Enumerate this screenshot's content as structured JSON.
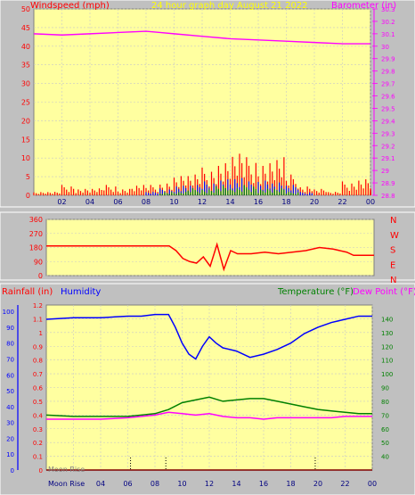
{
  "chart_data": [
    {
      "type": "line",
      "title": "24 hour graph day   August 21 2022",
      "ylabel_left": "Windspeed (mph)",
      "ylabel_right": "Barometer (in)",
      "x_ticks": [
        "02",
        "04",
        "06",
        "08",
        "10",
        "12",
        "14",
        "16",
        "18",
        "20",
        "22",
        "00"
      ],
      "ylim_left": [
        0,
        50
      ],
      "y_ticks_left": [
        0,
        5,
        10,
        15,
        20,
        25,
        30,
        35,
        40,
        45,
        50
      ],
      "ylim_right": [
        28.8,
        30.3
      ],
      "y_ticks_right": [
        "28.8",
        "28.9",
        "29",
        "29.1",
        "29.2",
        "29.3",
        "29.4",
        "29.5",
        "29.6",
        "29.7",
        "29.8",
        "29.9",
        "30",
        "30.1",
        "30.2",
        "30.3"
      ],
      "series": [
        {
          "name": "Barometer",
          "color": "#ff00ff",
          "axis": "right",
          "x": [
            0,
            2,
            4,
            6,
            8,
            9,
            10,
            12,
            14,
            16,
            18,
            20,
            22,
            24
          ],
          "values": [
            30.1,
            30.09,
            30.1,
            30.11,
            30.12,
            30.11,
            30.1,
            30.08,
            30.06,
            30.05,
            30.04,
            30.03,
            30.02,
            30.02
          ]
        },
        {
          "name": "Wind gust",
          "color": "#ff0000",
          "axis": "left",
          "x": [
            0,
            1,
            2,
            3,
            4,
            5,
            6,
            7,
            8,
            9,
            10,
            11,
            12,
            13,
            14,
            15,
            16,
            17,
            18,
            19,
            20,
            21,
            22,
            23,
            24
          ],
          "values": [
            1,
            1,
            3,
            2,
            2,
            3,
            2,
            3,
            3,
            4,
            6,
            6,
            8,
            10,
            12,
            11,
            10,
            11,
            6,
            3,
            2,
            1,
            4,
            5,
            2
          ]
        },
        {
          "name": "Wind average",
          "color": "#0000ff",
          "axis": "left",
          "x": [
            0,
            2,
            4,
            6,
            8,
            9,
            10,
            11,
            12,
            13,
            14,
            15,
            16,
            17,
            18,
            19,
            20,
            22,
            24
          ],
          "values": [
            0,
            0,
            0,
            0,
            1,
            2,
            3,
            3,
            4,
            5,
            5,
            4,
            5,
            4,
            3,
            1,
            0,
            0,
            0
          ]
        },
        {
          "name": "Wind direction trace",
          "color": "#008000",
          "axis": "left",
          "x": [
            0,
            8,
            9,
            10,
            11,
            12,
            13,
            14,
            15,
            16,
            17,
            18,
            19,
            20,
            24
          ],
          "values": [
            0,
            0,
            1,
            1,
            2,
            2,
            3,
            2,
            3,
            2,
            2,
            1,
            0,
            0,
            0
          ]
        }
      ]
    },
    {
      "type": "line",
      "ylabel_right": "N W S E N",
      "compass": [
        "N",
        "W",
        "S",
        "E",
        "N"
      ],
      "ylim": [
        0,
        360
      ],
      "y_ticks": [
        0,
        90,
        180,
        270,
        360
      ],
      "series": [
        {
          "name": "Wind direction",
          "color": "#ff0000",
          "x": [
            0,
            2,
            4,
            6,
            7,
            8,
            9,
            9.5,
            10,
            10.5,
            11,
            11.5,
            12,
            12.5,
            13,
            13.5,
            14,
            15,
            16,
            17,
            18,
            19,
            20,
            21,
            22,
            22.5,
            24
          ],
          "values": [
            190,
            190,
            190,
            190,
            190,
            190,
            190,
            160,
            110,
            90,
            80,
            120,
            60,
            200,
            40,
            160,
            140,
            140,
            150,
            140,
            150,
            160,
            180,
            170,
            150,
            130,
            130
          ]
        }
      ]
    },
    {
      "type": "line",
      "ylabel_left_1": "Rainfall (in)",
      "ylabel_left_2": "Humidity",
      "ylabel_right_1": "Temperature (°F)",
      "ylabel_right_2": "Dew Point (°F)",
      "x_ticks": [
        "Moon Rise",
        "04",
        "06",
        "08",
        "10",
        "12",
        "14",
        "16",
        "18",
        "20",
        "22",
        "00"
      ],
      "x_tick_first_override": "Moon Rise",
      "moon_set_label": "Moon Rise",
      "rain_ticks": [
        "0",
        "0.1",
        "0.2",
        "0.3",
        "0.4",
        "0.5",
        "0.6",
        "0.7",
        "0.8",
        "0.9",
        "1",
        "1.1",
        "1.2"
      ],
      "humidity_ticks": [
        0,
        10,
        20,
        30,
        40,
        50,
        60,
        70,
        80,
        90,
        100
      ],
      "temp_ticks": [
        40,
        50,
        60,
        70,
        80,
        90,
        100,
        110,
        120,
        130,
        140
      ],
      "ylim_temp": [
        30,
        150
      ],
      "ylim_humidity": [
        0,
        104
      ],
      "series": [
        {
          "name": "Humidity",
          "color": "#0000ff",
          "axis": "humidity",
          "x": [
            0,
            2,
            4,
            6,
            7,
            8,
            9,
            9.5,
            10,
            10.5,
            11,
            11.5,
            12,
            12.5,
            13,
            14,
            15,
            16,
            17,
            18,
            19,
            20,
            21,
            22,
            23,
            24
          ],
          "values": [
            95,
            96,
            96,
            97,
            97,
            98,
            98,
            90,
            80,
            73,
            70,
            78,
            84,
            80,
            77,
            75,
            71,
            73,
            76,
            80,
            86,
            90,
            93,
            95,
            97,
            97
          ]
        },
        {
          "name": "Temperature",
          "color": "#008000",
          "axis": "temp",
          "x": [
            0,
            2,
            4,
            6,
            7,
            8,
            9,
            10,
            11,
            12,
            13,
            14,
            15,
            16,
            17,
            18,
            19,
            20,
            21,
            22,
            23,
            24
          ],
          "values": [
            70,
            69,
            69,
            69,
            70,
            71,
            74,
            79,
            81,
            83,
            80,
            81,
            82,
            82,
            80,
            78,
            76,
            74,
            73,
            72,
            71,
            71
          ]
        },
        {
          "name": "Dew Point",
          "color": "#ff00ff",
          "axis": "temp",
          "x": [
            0,
            2,
            4,
            6,
            7,
            8,
            9,
            10,
            11,
            12,
            13,
            14,
            15,
            16,
            17,
            18,
            19,
            20,
            21,
            22,
            23,
            24
          ],
          "values": [
            67,
            67,
            67,
            68,
            69,
            70,
            72,
            71,
            70,
            71,
            69,
            68,
            68,
            67,
            68,
            68,
            68,
            68,
            68,
            69,
            69,
            69
          ]
        },
        {
          "name": "Rainfall",
          "color": "#800000",
          "axis": "rain",
          "x": [
            0,
            24
          ],
          "values": [
            0,
            0
          ]
        }
      ],
      "dotted_markers_x": [
        6.2,
        8.8,
        19.8
      ]
    }
  ]
}
